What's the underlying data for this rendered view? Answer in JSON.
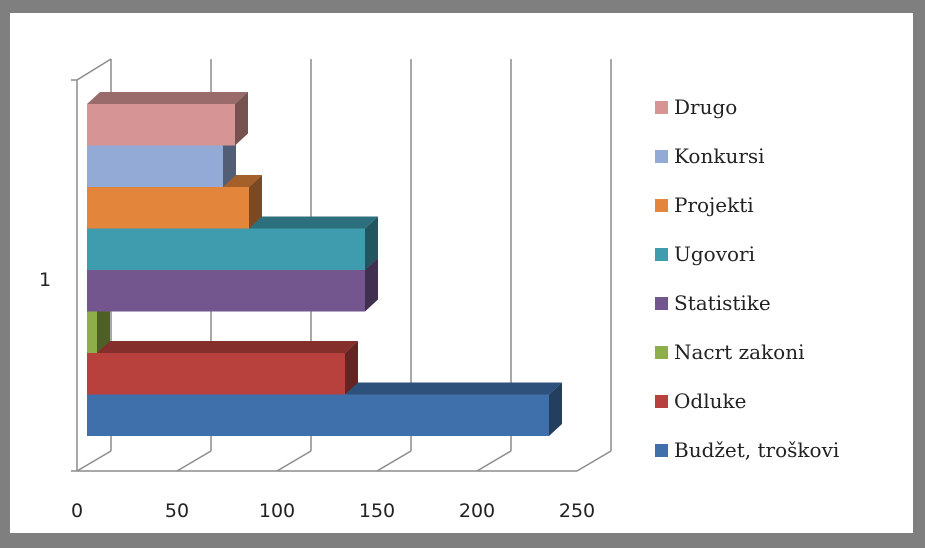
{
  "chart_data": {
    "type": "bar",
    "orientation": "horizontal",
    "style": "3d-clustered",
    "categories": [
      "1"
    ],
    "series": [
      {
        "name": "Budžet, troškovi",
        "values": [
          236
        ],
        "color": "#4070ab"
      },
      {
        "name": "Odluke",
        "values": [
          134
        ],
        "color": "#b8413d"
      },
      {
        "name": "Nacrt zakoni",
        "values": [
          10
        ],
        "color": "#8dae49"
      },
      {
        "name": "Statistike",
        "values": [
          144
        ],
        "color": "#74568f"
      },
      {
        "name": "Ugovori",
        "values": [
          144
        ],
        "color": "#3f9bae"
      },
      {
        "name": "Projekti",
        "values": [
          86
        ],
        "color": "#e3853a"
      },
      {
        "name": "Konkursi",
        "values": [
          73
        ],
        "color": "#93aad6"
      },
      {
        "name": "Drugo",
        "values": [
          79
        ],
        "color": "#d69594"
      }
    ],
    "xlim": [
      0,
      250
    ],
    "xticks": [
      "0",
      "50",
      "100",
      "150",
      "200",
      "250"
    ],
    "grid": true,
    "legend_position": "right"
  }
}
